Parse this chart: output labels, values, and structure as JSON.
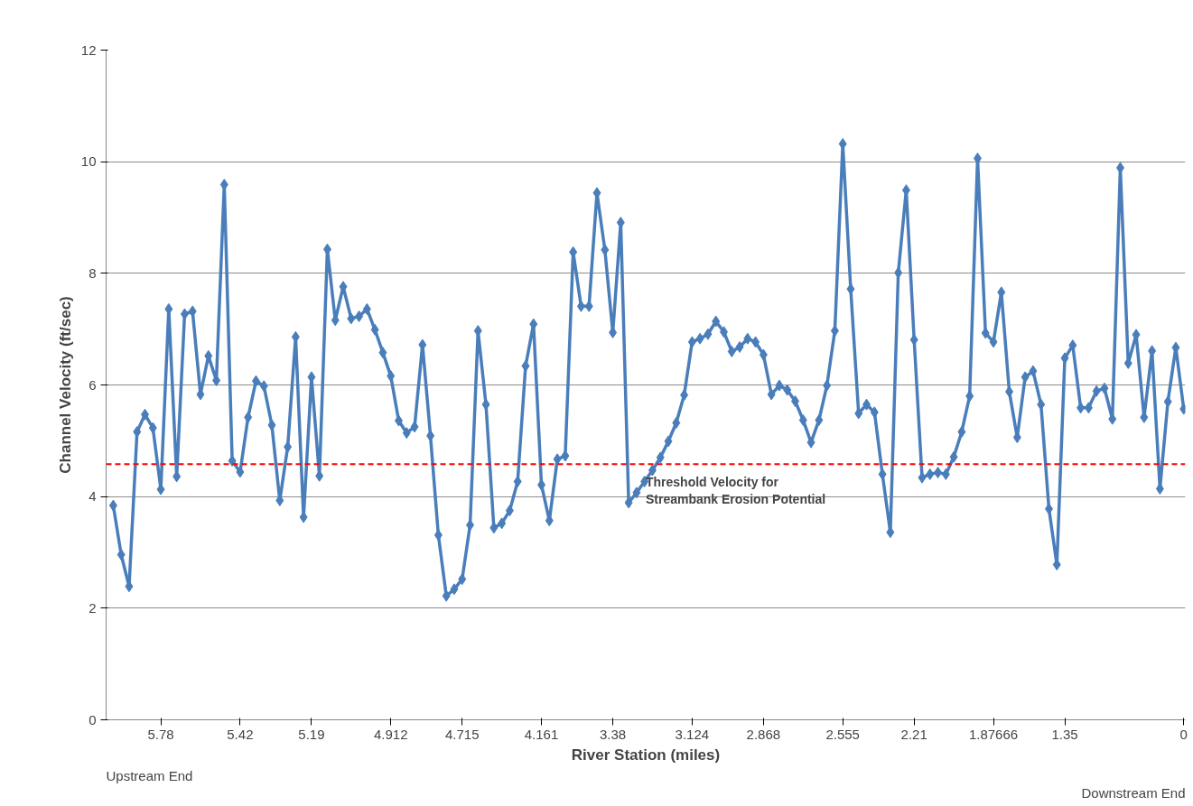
{
  "chart_data": {
    "type": "line",
    "xlabel": "River Station (miles)",
    "ylabel": "Channel Velocity (ft/sec)",
    "categories": [
      null,
      null,
      null,
      null,
      null,
      null,
      "5.78",
      null,
      null,
      null,
      null,
      null,
      null,
      null,
      null,
      null,
      "5.42",
      null,
      null,
      null,
      null,
      null,
      null,
      null,
      null,
      "5.19",
      null,
      null,
      null,
      null,
      null,
      null,
      null,
      null,
      null,
      "4.912",
      null,
      null,
      null,
      null,
      null,
      null,
      null,
      null,
      "4.715",
      null,
      null,
      null,
      null,
      null,
      null,
      null,
      null,
      null,
      "4.161",
      null,
      null,
      null,
      null,
      null,
      null,
      null,
      null,
      "3.38",
      null,
      null,
      null,
      null,
      null,
      null,
      null,
      null,
      null,
      "3.124",
      null,
      null,
      null,
      null,
      null,
      null,
      null,
      null,
      "2.868",
      null,
      null,
      null,
      null,
      null,
      null,
      null,
      null,
      null,
      "2.555",
      null,
      null,
      null,
      null,
      null,
      null,
      null,
      null,
      "2.21",
      null,
      null,
      null,
      null,
      null,
      null,
      null,
      null,
      null,
      "1.87666",
      null,
      null,
      null,
      null,
      null,
      null,
      null,
      null,
      "1.35",
      null,
      null,
      null,
      null,
      null,
      null,
      null,
      null,
      null,
      null,
      null,
      null,
      null,
      null,
      "0"
    ],
    "series": [
      {
        "color": "#4a7ebb",
        "values": [
          3.84,
          2.96,
          2.39,
          5.16,
          5.47,
          5.23,
          4.13,
          7.36,
          4.36,
          7.27,
          7.32,
          5.83,
          6.52,
          6.08,
          9.59,
          4.64,
          4.44,
          5.42,
          6.07,
          5.98,
          5.28,
          3.93,
          4.89,
          6.86,
          3.63,
          6.14,
          4.37,
          8.43,
          7.16,
          7.76,
          7.19,
          7.23,
          7.36,
          6.99,
          6.58,
          6.16,
          5.36,
          5.14,
          5.25,
          6.72,
          5.09,
          3.31,
          2.22,
          2.34,
          2.52,
          3.49,
          6.97,
          5.65,
          3.44,
          3.52,
          3.75,
          4.27,
          6.34,
          7.09,
          4.21,
          3.57,
          4.67,
          4.73,
          8.38,
          7.41,
          7.41,
          9.44,
          8.42,
          6.94,
          8.91,
          3.89,
          4.07,
          4.27,
          4.47,
          4.7,
          4.99,
          5.32,
          5.82,
          6.77,
          6.83,
          6.91,
          7.14,
          6.95,
          6.6,
          6.68,
          6.83,
          6.77,
          6.54,
          5.83,
          5.99,
          5.91,
          5.71,
          5.37,
          4.97,
          5.37,
          5.99,
          6.97,
          10.32,
          7.72,
          5.49,
          5.65,
          5.51,
          4.4,
          3.36,
          8.01,
          9.49,
          6.81,
          4.34,
          4.4,
          4.43,
          4.4,
          4.71,
          5.16,
          5.8,
          10.06,
          6.93,
          6.77,
          7.66,
          5.88,
          5.06,
          6.14,
          6.25,
          5.65,
          3.78,
          2.78,
          6.48,
          6.71,
          5.59,
          5.59,
          5.89,
          5.94,
          5.39,
          9.89,
          6.39,
          6.9,
          5.42,
          6.61,
          4.14,
          5.7,
          6.67,
          5.57
        ]
      }
    ],
    "ylim": [
      0,
      12
    ],
    "yticks": [
      0,
      2,
      4,
      6,
      8,
      10,
      12
    ],
    "grid": "y",
    "marker": "diamond",
    "line_style": "solid",
    "ref_lines": [
      {
        "axis": "y",
        "value": 4.58,
        "label": "Threshold Velocity for\nStreambank Erosion Potential",
        "color": "#ff0000",
        "line_style": "dashed"
      }
    ],
    "annotations": [
      "Upstream End",
      "Downstream End"
    ]
  }
}
